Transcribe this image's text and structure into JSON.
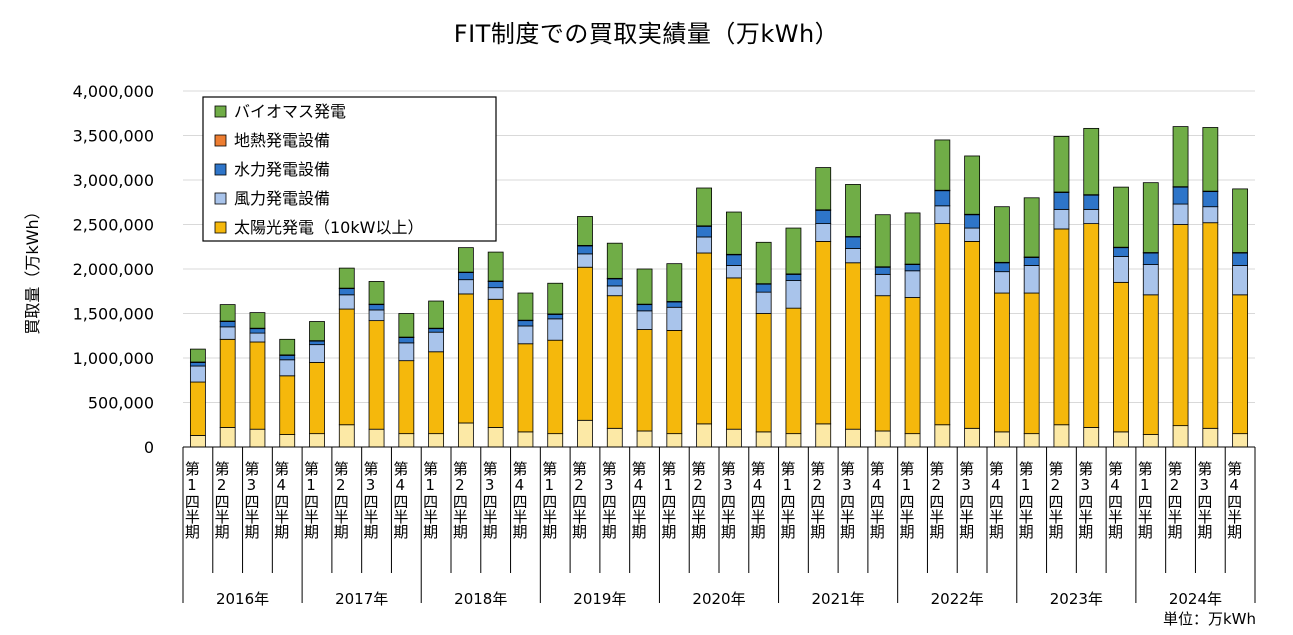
{
  "chart_data": {
    "type": "bar",
    "stacked": true,
    "title": "FIT制度での買取実績量（万kWh）",
    "ylabel": "買取量（万kWh）",
    "unit_note": "単位：万kWh",
    "ylim": [
      0,
      4000000
    ],
    "yticks": [
      "0",
      "500,000",
      "1,000,000",
      "1,500,000",
      "2,000,000",
      "2,500,000",
      "3,000,000",
      "3,500,000",
      "4,000,000"
    ],
    "grid": true,
    "legend_position": "top-left",
    "years": [
      "2016年",
      "2017年",
      "2018年",
      "2019年",
      "2020年",
      "2021年",
      "2022年",
      "2023年",
      "2024年"
    ],
    "quarter_labels": [
      "第1四半期",
      "第2四半期",
      "第3四半期",
      "第4四半期"
    ],
    "legend": [
      "バイオマス発電",
      "地熱発電設備",
      "水力発電設備",
      "風力発電設備",
      "太陽光発電（10kW以上）"
    ],
    "series": [
      {
        "name": "",
        "color": "#FCE9A6",
        "values": [
          130000,
          220000,
          200000,
          140000,
          150000,
          250000,
          200000,
          150000,
          150000,
          270000,
          220000,
          170000,
          150000,
          300000,
          210000,
          180000,
          150000,
          260000,
          200000,
          170000,
          150000,
          260000,
          200000,
          180000,
          150000,
          250000,
          210000,
          170000,
          150000,
          250000,
          220000,
          170000,
          140000,
          240000,
          210000,
          150000
        ]
      },
      {
        "name": "太陽光発電（10kW以上）",
        "color": "#F5B80C",
        "values": [
          600000,
          990000,
          980000,
          660000,
          800000,
          1300000,
          1220000,
          820000,
          920000,
          1450000,
          1440000,
          990000,
          1050000,
          1720000,
          1490000,
          1140000,
          1160000,
          1920000,
          1700000,
          1330000,
          1410000,
          2050000,
          1870000,
          1520000,
          1530000,
          2260000,
          2100000,
          1560000,
          1580000,
          2200000,
          2290000,
          1680000,
          1570000,
          2260000,
          2310000,
          1560000
        ]
      },
      {
        "name": "風力発電設備",
        "color": "#A9C4EB",
        "values": [
          180000,
          140000,
          100000,
          180000,
          200000,
          160000,
          120000,
          200000,
          220000,
          160000,
          130000,
          200000,
          240000,
          150000,
          110000,
          210000,
          260000,
          180000,
          140000,
          240000,
          310000,
          200000,
          160000,
          240000,
          300000,
          200000,
          150000,
          240000,
          310000,
          220000,
          160000,
          290000,
          340000,
          230000,
          180000,
          330000
        ]
      },
      {
        "name": "水力発電設備",
        "color": "#2E75C9",
        "values": [
          40000,
          60000,
          50000,
          50000,
          40000,
          70000,
          60000,
          60000,
          40000,
          80000,
          70000,
          60000,
          50000,
          90000,
          80000,
          70000,
          60000,
          120000,
          120000,
          90000,
          70000,
          150000,
          130000,
          80000,
          70000,
          170000,
          150000,
          100000,
          90000,
          190000,
          160000,
          100000,
          130000,
          190000,
          170000,
          140000
        ]
      },
      {
        "name": "地熱発電設備",
        "color": "#ED7D31",
        "values": [
          5000,
          5000,
          5000,
          5000,
          5000,
          5000,
          5000,
          5000,
          5000,
          5000,
          5000,
          5000,
          5000,
          5000,
          5000,
          5000,
          5000,
          5000,
          5000,
          5000,
          5000,
          5000,
          5000,
          5000,
          5000,
          5000,
          5000,
          5000,
          5000,
          5000,
          5000,
          5000,
          5000,
          5000,
          5000,
          5000
        ]
      },
      {
        "name": "バイオマス発電",
        "color": "#70AD47",
        "values": [
          145000,
          185000,
          175000,
          175000,
          215000,
          225000,
          255000,
          265000,
          305000,
          275000,
          325000,
          305000,
          345000,
          325000,
          395000,
          395000,
          425000,
          425000,
          475000,
          465000,
          515000,
          475000,
          585000,
          585000,
          575000,
          565000,
          655000,
          625000,
          665000,
          625000,
          745000,
          675000,
          785000,
          675000,
          715000,
          715000
        ]
      }
    ]
  }
}
